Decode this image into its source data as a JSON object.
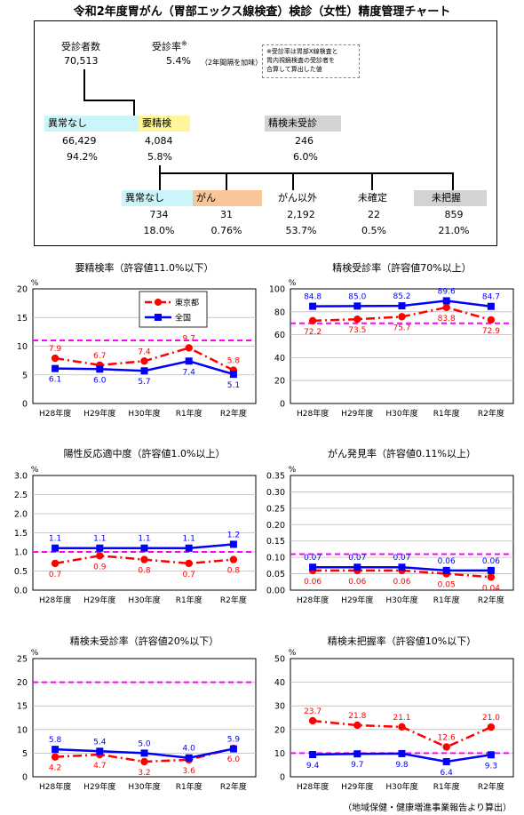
{
  "title": "令和2年度胃がん（胃部エックス線検査）検診（女性）精度管理チャート",
  "summary": {
    "examinees_label": "受診者数",
    "examinees_value": "70,513",
    "rate_label": "受診率",
    "rate_mark": "※",
    "rate_value": "5.4%",
    "rate_note": "（2年間隔を加味）",
    "footnote_lines": [
      "※受診率は胃部X線検査と",
      "胃内視鏡検査の受診者を",
      "合算して算出した値"
    ],
    "level1": [
      {
        "label": "異常なし",
        "count": "66,429",
        "pct": "94.2%",
        "color": "#ccf5fa"
      },
      {
        "label": "要精検",
        "count": "4,084",
        "pct": "5.8%",
        "color": "#fff59b"
      },
      {
        "label": "精検未受診",
        "count": "246",
        "pct": "6.0%",
        "color": "#d3d3d3"
      }
    ],
    "level2": [
      {
        "label": "異常なし",
        "count": "734",
        "pct": "18.0%",
        "color": "#ccf5fa"
      },
      {
        "label": "がん",
        "count": "31",
        "pct": "0.76%",
        "color": "#f9c69a"
      },
      {
        "label": "がん以外",
        "count": "2,192",
        "pct": "53.7%",
        "color": ""
      },
      {
        "label": "未確定",
        "count": "22",
        "pct": "0.5%",
        "color": ""
      },
      {
        "label": "未把握",
        "count": "859",
        "pct": "21.0%",
        "color": "#d3d3d3"
      }
    ]
  },
  "legend": {
    "tokyo": "東京都",
    "national": "全国"
  },
  "footer": "（地域保健・健康増進事業報告より算出）",
  "chart_data": [
    {
      "type": "line",
      "title": "要精検率（許容値11.0%以下）",
      "ylabel": "%",
      "categories": [
        "H28年度",
        "H29年度",
        "H30年度",
        "R1年度",
        "R2年度"
      ],
      "ylim": [
        0,
        20
      ],
      "yticks": [
        "0",
        "5",
        "10",
        "15",
        "20"
      ],
      "threshold": 11.0,
      "legend_position": "top-center",
      "series": [
        {
          "name": "東京都",
          "values": [
            7.9,
            6.7,
            7.4,
            9.7,
            5.8
          ],
          "labels": [
            "7.9",
            "6.7",
            "7.4",
            "9.7",
            "5.8"
          ],
          "color": "#ff0000"
        },
        {
          "name": "全国",
          "values": [
            6.1,
            6.0,
            5.7,
            7.4,
            5.1
          ],
          "labels": [
            "6.1",
            "6.0",
            "5.7",
            "7.4",
            "5.1"
          ],
          "color": "#0000ff"
        }
      ]
    },
    {
      "type": "line",
      "title": "精検受診率（許容値70%以上）",
      "ylabel": "%",
      "categories": [
        "H28年度",
        "H29年度",
        "H30年度",
        "R1年度",
        "R2年度"
      ],
      "ylim": [
        0,
        100
      ],
      "yticks": [
        "0",
        "20",
        "40",
        "60",
        "80",
        "100"
      ],
      "threshold": 70,
      "series": [
        {
          "name": "東京都",
          "values": [
            72.2,
            73.5,
            75.7,
            83.8,
            72.9
          ],
          "labels": [
            "72.2",
            "73.5",
            "75.7",
            "83.8",
            "72.9"
          ],
          "color": "#ff0000"
        },
        {
          "name": "全国",
          "values": [
            84.8,
            85.0,
            85.2,
            89.6,
            84.7
          ],
          "labels": [
            "84.8",
            "85.0",
            "85.2",
            "89.6",
            "84.7"
          ],
          "color": "#0000ff"
        }
      ]
    },
    {
      "type": "line",
      "title": "陽性反応適中度（許容値1.0%以上）",
      "ylabel": "%",
      "categories": [
        "H28年度",
        "H29年度",
        "H30年度",
        "R1年度",
        "R2年度"
      ],
      "ylim": [
        0,
        3.0
      ],
      "yticks": [
        "0.0",
        "0.5",
        "1.0",
        "1.5",
        "2.0",
        "2.5",
        "3.0"
      ],
      "threshold": 1.0,
      "series": [
        {
          "name": "東京都",
          "values": [
            0.7,
            0.9,
            0.8,
            0.7,
            0.8
          ],
          "labels": [
            "0.7",
            "0.9",
            "0.8",
            "0.7",
            "0.8"
          ],
          "color": "#ff0000"
        },
        {
          "name": "全国",
          "values": [
            1.1,
            1.1,
            1.1,
            1.1,
            1.2
          ],
          "labels": [
            "1.1",
            "1.1",
            "1.1",
            "1.1",
            "1.2"
          ],
          "color": "#0000ff"
        }
      ]
    },
    {
      "type": "line",
      "title": "がん発見率（許容値0.11%以上）",
      "ylabel": "%",
      "categories": [
        "H28年度",
        "H29年度",
        "H30年度",
        "R1年度",
        "R2年度"
      ],
      "ylim": [
        0,
        0.35
      ],
      "yticks": [
        "0.00",
        "0.05",
        "0.10",
        "0.15",
        "0.20",
        "0.25",
        "0.30",
        "0.35"
      ],
      "threshold": 0.11,
      "series": [
        {
          "name": "東京都",
          "values": [
            0.06,
            0.06,
            0.06,
            0.05,
            0.04
          ],
          "labels": [
            "0.06",
            "0.06",
            "0.06",
            "0.05",
            "0.04"
          ],
          "color": "#ff0000"
        },
        {
          "name": "全国",
          "values": [
            0.07,
            0.07,
            0.07,
            0.06,
            0.06
          ],
          "labels": [
            "0.07",
            "0.07",
            "0.07",
            "0.06",
            "0.06"
          ],
          "color": "#0000ff"
        }
      ]
    },
    {
      "type": "line",
      "title": "精検未受診率（許容値20%以下）",
      "ylabel": "%",
      "categories": [
        "H28年度",
        "H29年度",
        "H30年度",
        "R1年度",
        "R2年度"
      ],
      "ylim": [
        0,
        25
      ],
      "yticks": [
        "0",
        "5",
        "10",
        "15",
        "20",
        "25"
      ],
      "threshold": 20,
      "series": [
        {
          "name": "東京都",
          "values": [
            4.2,
            4.7,
            3.2,
            3.6,
            6.0
          ],
          "labels": [
            "4.2",
            "4.7",
            "3.2",
            "3.6",
            "6.0"
          ],
          "color": "#ff0000"
        },
        {
          "name": "全国",
          "values": [
            5.8,
            5.4,
            5.0,
            4.0,
            5.9
          ],
          "labels": [
            "5.8",
            "5.4",
            "5.0",
            "4.0",
            "5.9"
          ],
          "color": "#0000ff"
        }
      ]
    },
    {
      "type": "line",
      "title": "精検未把握率（許容値10%以下）",
      "ylabel": "%",
      "categories": [
        "H28年度",
        "H29年度",
        "H30年度",
        "R1年度",
        "R2年度"
      ],
      "ylim": [
        0,
        50
      ],
      "yticks": [
        "0",
        "10",
        "20",
        "30",
        "40",
        "50"
      ],
      "threshold": 10,
      "series": [
        {
          "name": "東京都",
          "values": [
            23.7,
            21.8,
            21.1,
            12.6,
            21.0
          ],
          "labels": [
            "23.7",
            "21.8",
            "21.1",
            "12.6",
            "21.0"
          ],
          "color": "#ff0000"
        },
        {
          "name": "全国",
          "values": [
            9.4,
            9.7,
            9.8,
            6.4,
            9.3
          ],
          "labels": [
            "9.4",
            "9.7",
            "9.8",
            "6.4",
            "9.3"
          ],
          "color": "#0000ff"
        }
      ]
    }
  ]
}
